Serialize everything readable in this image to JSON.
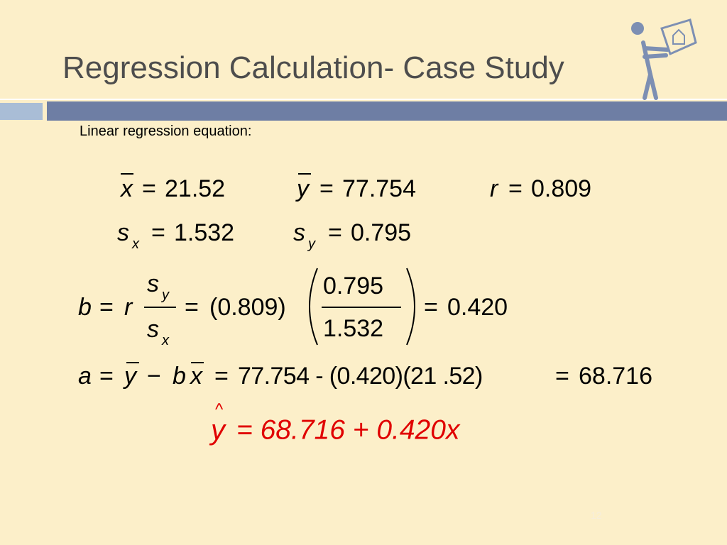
{
  "header": {
    "title": "Regression Calculation- Case Study"
  },
  "subtitle": "Linear regression equation:",
  "stats": {
    "xbar": {
      "symbol": "x",
      "sign": "=",
      "value": "21.52"
    },
    "ybar": {
      "symbol": "y",
      "sign": "=",
      "value": "77.754"
    },
    "r": {
      "symbol": "r",
      "sign": "=",
      "value": "0.809"
    },
    "sx": {
      "symbol": "s",
      "subscript": "x",
      "sign": "=",
      "value": "1.532"
    },
    "sy": {
      "symbol": "s",
      "subscript": "y",
      "sign": "=",
      "value": "0.795"
    }
  },
  "slope": {
    "lhs": "b",
    "sign1": "=",
    "r": "r",
    "num": "s",
    "num_sub": "y",
    "den": "s",
    "den_sub": "x",
    "sign2": "=",
    "r_value": "(0.809)",
    "frac_num": "0.795",
    "frac_den": "1.532",
    "sign3": "=",
    "result": "0.420"
  },
  "intercept": {
    "lhs": "a",
    "sign1": "=",
    "ybar": "y",
    "minus": "−",
    "b": "b",
    "xbar": "x",
    "sign2": "=",
    "expression": "77.754 - (0.420)(21 .52)",
    "sign3": "=",
    "result": "68.716"
  },
  "fitted": {
    "hat": "^",
    "y": "y",
    "equation": "= 68.716 + 0.420x"
  },
  "page_number": "12"
}
